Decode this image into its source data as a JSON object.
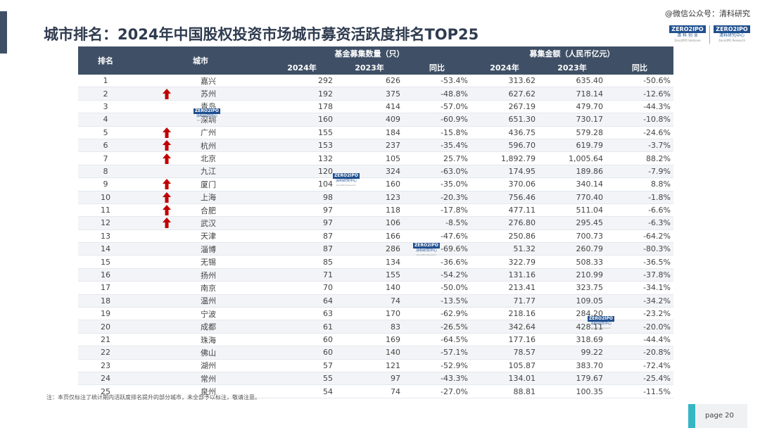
{
  "title": "城市排名：2024年中国股权投资市场城市募资活跃度排名TOP25",
  "watermark": "@微信公众号：清科研究",
  "logos": [
    {
      "top": "ZERO2IPO",
      "cn": "清 科 创 业",
      "en": "Zero2IPO Ventures"
    },
    {
      "top": "ZERO2IPO",
      "cn": "清科研究中心",
      "en": "Zero2IPO Research"
    }
  ],
  "stamp": {
    "top": "ZERO2IPO",
    "cn": "清科研究中心",
    "en": "Zero2IPO Research"
  },
  "table": {
    "headers": {
      "rank": "排名",
      "city": "城市",
      "fund_group": "基金募集数量（只）",
      "amount_group": "募集金额（人民币亿元）",
      "y2024": "2024年",
      "y2023": "2023年",
      "yoy": "同比"
    },
    "rows": [
      {
        "rank": "1",
        "up": false,
        "city": "嘉兴",
        "f24": "292",
        "f23": "626",
        "fyoy": "-53.4%",
        "a24": "313.62",
        "a23": "635.40",
        "ayoy": "-50.6%"
      },
      {
        "rank": "2",
        "up": true,
        "city": "苏州",
        "f24": "192",
        "f23": "375",
        "fyoy": "-48.8%",
        "a24": "627.62",
        "a23": "718.14",
        "ayoy": "-12.6%"
      },
      {
        "rank": "3",
        "up": false,
        "city": "青岛",
        "f24": "178",
        "f23": "414",
        "fyoy": "-57.0%",
        "a24": "267.19",
        "a23": "479.70",
        "ayoy": "-44.3%"
      },
      {
        "rank": "4",
        "up": false,
        "city": "深圳",
        "f24": "160",
        "f23": "409",
        "fyoy": "-60.9%",
        "a24": "651.30",
        "a23": "730.17",
        "ayoy": "-10.8%"
      },
      {
        "rank": "5",
        "up": true,
        "city": "广州",
        "f24": "155",
        "f23": "184",
        "fyoy": "-15.8%",
        "a24": "436.75",
        "a23": "579.28",
        "ayoy": "-24.6%"
      },
      {
        "rank": "6",
        "up": true,
        "city": "杭州",
        "f24": "153",
        "f23": "237",
        "fyoy": "-35.4%",
        "a24": "596.70",
        "a23": "619.79",
        "ayoy": "-3.7%"
      },
      {
        "rank": "7",
        "up": true,
        "city": "北京",
        "f24": "132",
        "f23": "105",
        "fyoy": "25.7%",
        "a24": "1,892.79",
        "a23": "1,005.64",
        "ayoy": "88.2%"
      },
      {
        "rank": "8",
        "up": false,
        "city": "九江",
        "f24": "120",
        "f23": "324",
        "fyoy": "-63.0%",
        "a24": "174.95",
        "a23": "189.86",
        "ayoy": "-7.9%"
      },
      {
        "rank": "9",
        "up": true,
        "city": "厦门",
        "f24": "104",
        "f23": "160",
        "fyoy": "-35.0%",
        "a24": "370.06",
        "a23": "340.14",
        "ayoy": "8.8%"
      },
      {
        "rank": "10",
        "up": true,
        "city": "上海",
        "f24": "98",
        "f23": "123",
        "fyoy": "-20.3%",
        "a24": "756.46",
        "a23": "770.40",
        "ayoy": "-1.8%"
      },
      {
        "rank": "11",
        "up": true,
        "city": "合肥",
        "f24": "97",
        "f23": "118",
        "fyoy": "-17.8%",
        "a24": "477.11",
        "a23": "511.04",
        "ayoy": "-6.6%"
      },
      {
        "rank": "12",
        "up": true,
        "city": "武汉",
        "f24": "97",
        "f23": "106",
        "fyoy": "-8.5%",
        "a24": "276.80",
        "a23": "295.45",
        "ayoy": "-6.3%"
      },
      {
        "rank": "13",
        "up": false,
        "city": "天津",
        "f24": "87",
        "f23": "166",
        "fyoy": "-47.6%",
        "a24": "250.86",
        "a23": "700.73",
        "ayoy": "-64.2%"
      },
      {
        "rank": "14",
        "up": false,
        "city": "淄博",
        "f24": "87",
        "f23": "286",
        "fyoy": "-69.6%",
        "a24": "51.32",
        "a23": "260.79",
        "ayoy": "-80.3%"
      },
      {
        "rank": "15",
        "up": false,
        "city": "无锡",
        "f24": "85",
        "f23": "134",
        "fyoy": "-36.6%",
        "a24": "322.79",
        "a23": "508.33",
        "ayoy": "-36.5%"
      },
      {
        "rank": "16",
        "up": false,
        "city": "扬州",
        "f24": "71",
        "f23": "155",
        "fyoy": "-54.2%",
        "a24": "131.16",
        "a23": "210.99",
        "ayoy": "-37.8%"
      },
      {
        "rank": "17",
        "up": false,
        "city": "南京",
        "f24": "70",
        "f23": "140",
        "fyoy": "-50.0%",
        "a24": "213.41",
        "a23": "323.75",
        "ayoy": "-34.1%"
      },
      {
        "rank": "18",
        "up": false,
        "city": "温州",
        "f24": "64",
        "f23": "74",
        "fyoy": "-13.5%",
        "a24": "71.77",
        "a23": "109.05",
        "ayoy": "-34.2%"
      },
      {
        "rank": "19",
        "up": false,
        "city": "宁波",
        "f24": "63",
        "f23": "170",
        "fyoy": "-62.9%",
        "a24": "218.16",
        "a23": "284.20",
        "ayoy": "-23.2%"
      },
      {
        "rank": "20",
        "up": false,
        "city": "成都",
        "f24": "61",
        "f23": "83",
        "fyoy": "-26.5%",
        "a24": "342.64",
        "a23": "428.11",
        "ayoy": "-20.0%"
      },
      {
        "rank": "21",
        "up": false,
        "city": "珠海",
        "f24": "60",
        "f23": "169",
        "fyoy": "-64.5%",
        "a24": "177.16",
        "a23": "318.69",
        "ayoy": "-44.4%"
      },
      {
        "rank": "22",
        "up": false,
        "city": "佛山",
        "f24": "60",
        "f23": "140",
        "fyoy": "-57.1%",
        "a24": "78.57",
        "a23": "99.22",
        "ayoy": "-20.8%"
      },
      {
        "rank": "23",
        "up": false,
        "city": "湖州",
        "f24": "57",
        "f23": "121",
        "fyoy": "-52.9%",
        "a24": "105.87",
        "a23": "383.70",
        "ayoy": "-72.4%"
      },
      {
        "rank": "24",
        "up": false,
        "city": "常州",
        "f24": "55",
        "f23": "97",
        "fyoy": "-43.3%",
        "a24": "134.01",
        "a23": "179.67",
        "ayoy": "-25.4%"
      },
      {
        "rank": "25",
        "up": false,
        "city": "泉州",
        "f24": "54",
        "f23": "74",
        "fyoy": "-27.0%",
        "a24": "88.81",
        "a23": "100.35",
        "ayoy": "-11.5%"
      }
    ]
  },
  "footnote": "注：本页仅标注了统计期内活跃度排名提升的部分城市，未全部予以标注，敬请注意。",
  "page_label": "page  20",
  "colors": {
    "header_bg": "#3f5066",
    "arrow": "#c00000",
    "accent": "#35b6c4"
  }
}
